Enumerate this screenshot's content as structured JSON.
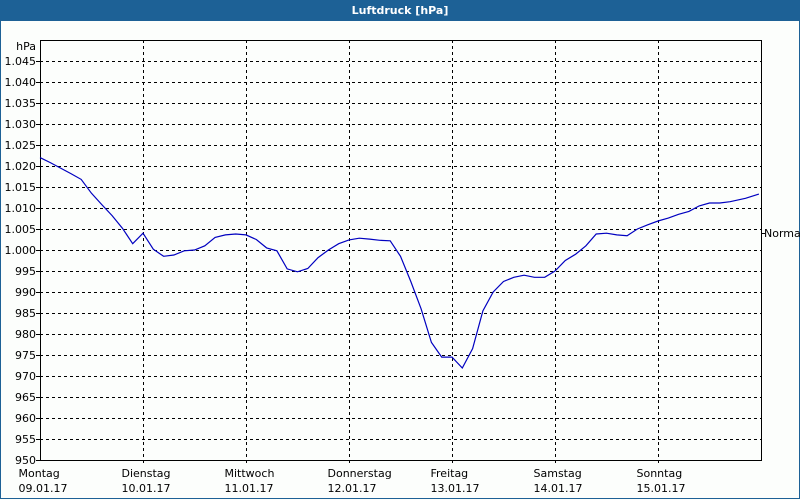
{
  "window": {
    "title": "Luftdruck [hPa]"
  },
  "colors": {
    "titlebar": "#1d6196",
    "line": "#0000c0",
    "grid": "#000000",
    "background": "#fcfefc"
  },
  "chart_data": {
    "type": "line",
    "title": "Luftdruck [hPa]",
    "ylabel": "hPa",
    "xlabel": "",
    "ylim": [
      950,
      1050
    ],
    "yticks": [
      "950",
      "955",
      "960",
      "965",
      "970",
      "975",
      "980",
      "985",
      "990",
      "995",
      "1.000",
      "1.005",
      "1.010",
      "1.015",
      "1.020",
      "1.025",
      "1.030",
      "1.035",
      "1.040",
      "1.045"
    ],
    "xticks": [
      {
        "day": "Montag",
        "date": "09.01.17"
      },
      {
        "day": "Dienstag",
        "date": "10.01.17"
      },
      {
        "day": "Mittwoch",
        "date": "11.01.17"
      },
      {
        "day": "Donnerstag",
        "date": "12.01.17"
      },
      {
        "day": "Freitag",
        "date": "13.01.17"
      },
      {
        "day": "Samstag",
        "date": "14.01.17"
      },
      {
        "day": "Sonntag",
        "date": "15.01.17"
      }
    ],
    "reference_line": {
      "label": "Normal",
      "value": 1004
    },
    "grid": true,
    "series": [
      {
        "name": "Luftdruck",
        "x_days": [
          0,
          0.1,
          0.2,
          0.3,
          0.4,
          0.5,
          0.6,
          0.7,
          0.8,
          0.9,
          1.0,
          1.1,
          1.2,
          1.3,
          1.4,
          1.5,
          1.6,
          1.7,
          1.8,
          1.9,
          2.0,
          2.1,
          2.2,
          2.3,
          2.4,
          2.5,
          2.6,
          2.7,
          2.8,
          2.9,
          3.0,
          3.1,
          3.2,
          3.3,
          3.4,
          3.5,
          3.6,
          3.7,
          3.8,
          3.9,
          4.0,
          4.1,
          4.2,
          4.3,
          4.4,
          4.5,
          4.6,
          4.7,
          4.8,
          4.9,
          5.0,
          5.1,
          5.2,
          5.3,
          5.4,
          5.5,
          5.6,
          5.7,
          5.8,
          5.9,
          6.0,
          6.1,
          6.2,
          6.3,
          6.4,
          6.5,
          6.6,
          6.7,
          6.85,
          6.98
        ],
        "values": [
          1022,
          1020.8,
          1019.5,
          1018.2,
          1016.8,
          1013.5,
          1010.8,
          1008.2,
          1005.2,
          1001.5,
          1004.0,
          1000.2,
          998.5,
          998.8,
          999.8,
          1000.0,
          1001.0,
          1003.0,
          1003.6,
          1003.8,
          1003.6,
          1002.5,
          1000.5,
          999.8,
          995.5,
          994.8,
          995.6,
          998.2,
          1000.0,
          1001.5,
          1002.4,
          1002.8,
          1002.6,
          1002.3,
          1002.2,
          998.5,
          992.5,
          986.0,
          978.0,
          974.5,
          974.5,
          971.9,
          976.5,
          985.5,
          990.0,
          992.5,
          993.5,
          994.0,
          993.5,
          993.5,
          995.0,
          997.5,
          999.0,
          1001.0,
          1003.8,
          1004.0,
          1003.6,
          1003.4,
          1005.0,
          1006.0,
          1006.9,
          1007.6,
          1008.5,
          1009.2,
          1010.5,
          1011.2,
          1011.2,
          1011.5,
          1012.3,
          1013.3
        ]
      }
    ]
  }
}
